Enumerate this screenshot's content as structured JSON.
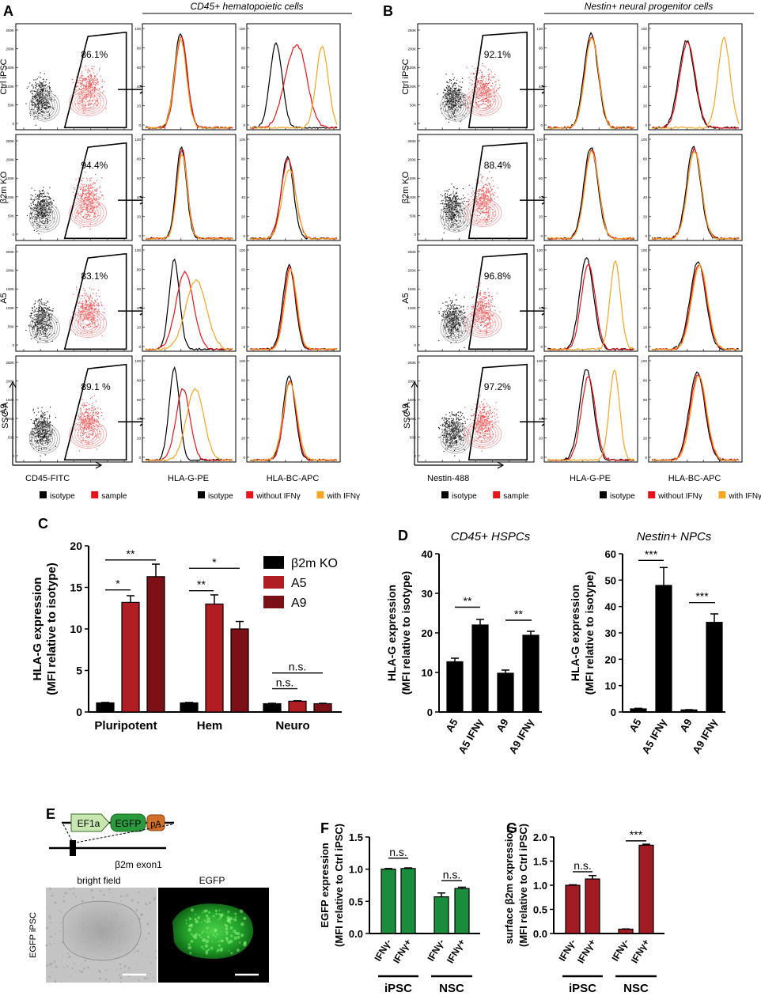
{
  "panel_letters": [
    "A",
    "B",
    "C",
    "D",
    "E",
    "F",
    "G"
  ],
  "panelA": {
    "header": "CD45+ hematopoietic cells",
    "rows": [
      {
        "label": "Ctrl iPSC",
        "gate_pct": "86.1%"
      },
      {
        "label": "β2m KO",
        "gate_pct": "94.4%"
      },
      {
        "label": "A5",
        "gate_pct": "83.1%"
      },
      {
        "label": "A9",
        "gate_pct": "89.1 %"
      }
    ],
    "x_label_scatter": "CD45-FITC",
    "x_label_hlag": "HLA-G-PE",
    "x_label_hlabc": "HLA-BC-APC",
    "y_label": "SSC-A"
  },
  "panelB": {
    "header": "Nestin+ neural progenitor cells",
    "rows": [
      {
        "label": "Ctrl iPSC",
        "gate_pct": "92.1%"
      },
      {
        "label": "β2m KO",
        "gate_pct": "88.4%"
      },
      {
        "label": "A5",
        "gate_pct": "96.8%"
      },
      {
        "label": "A9",
        "gate_pct": "97.2%"
      }
    ],
    "x_label_scatter": "Nestin-488",
    "x_label_hlag": "HLA-G-PE",
    "x_label_hlabc": "HLA-BC-APC",
    "y_label": "SSC-A"
  },
  "scatter_ticks": [
    "250K",
    "200K",
    "150K",
    "100K",
    "50K",
    "0"
  ],
  "hist_ticks": [
    "100",
    "80",
    "60",
    "40",
    "20",
    "0"
  ],
  "legend_scatter": [
    {
      "label": "isotype",
      "color": "#000000"
    },
    {
      "label": "sample",
      "color": "#e8141c"
    }
  ],
  "legend_hist": [
    {
      "label": "isotype",
      "color": "#000000"
    },
    {
      "label": "without IFNγ",
      "color": "#e8141c"
    },
    {
      "label": "with IFNγ",
      "color": "#f5a623"
    }
  ],
  "colors": {
    "black": "#000000",
    "red": "#e8141c",
    "orange": "#f5a623",
    "darkred": "#7b1116",
    "midred": "#b01e24",
    "green": "#1a8c3c",
    "brightred": "#a11c22"
  },
  "chart_data": [
    {
      "id": "C",
      "type": "bar",
      "ylabel": "HLA-G expression",
      "ylabel2": "(MFI relative to isotype)",
      "ylim": [
        0,
        20
      ],
      "yticks": [
        "0",
        "5",
        "10",
        "15",
        "20"
      ],
      "categories": [
        "Pluripotent",
        "Hem",
        "Neuro"
      ],
      "series": [
        {
          "name": "β2m KO",
          "values": [
            1.1,
            1.1,
            1.0
          ],
          "errors": [
            0.05,
            0.05,
            0.05
          ]
        },
        {
          "name": "A5",
          "values": [
            13.2,
            13.0,
            1.3
          ],
          "errors": [
            0.8,
            1.1,
            0.05
          ]
        },
        {
          "name": "A9",
          "values": [
            16.3,
            10.0,
            1.0
          ],
          "errors": [
            1.5,
            0.9,
            0.05
          ]
        }
      ],
      "annotations": [
        "*",
        "**",
        "**",
        "*",
        "n.s.",
        "n.s."
      ]
    },
    {
      "id": "D1",
      "type": "bar",
      "title": "CD45+ HSPCs",
      "ylabel": "HLA-G expression",
      "ylabel2": "(MFI relative to isotype)",
      "ylim": [
        0,
        40
      ],
      "yticks": [
        "0",
        "10",
        "20",
        "30",
        "40"
      ],
      "categories": [
        "A5",
        "A5 IFNγ",
        "A9",
        "A9 IFNγ"
      ],
      "values": [
        12.7,
        22.0,
        9.8,
        19.4
      ],
      "errors": [
        0.9,
        1.4,
        0.8,
        1.0
      ],
      "annotations": [
        "**",
        "**"
      ]
    },
    {
      "id": "D2",
      "type": "bar",
      "title": "Nestin+ NPCs",
      "ylabel": "HLA-G expression",
      "ylabel2": "(MFI relative to isotype)",
      "ylim": [
        0,
        60
      ],
      "yticks": [
        "0",
        "10",
        "20",
        "30",
        "40",
        "50",
        "60"
      ],
      "categories": [
        "A5",
        "A5 IFNγ",
        "A9",
        "A9 IFNγ"
      ],
      "values": [
        1.2,
        48.0,
        0.8,
        34.0
      ],
      "errors": [
        0.2,
        6.8,
        0.1,
        3.2
      ],
      "annotations": [
        "***",
        "***"
      ]
    },
    {
      "id": "F",
      "type": "bar",
      "ylabel": "EGFP expression",
      "ylabel2": "(MFI relative to Ctrl iPSC)",
      "ylim": [
        0,
        1.5
      ],
      "yticks": [
        "0.0",
        "0.5",
        "1.0",
        "1.5"
      ],
      "categories": [
        "IFNγ-",
        "IFNγ+",
        "IFNγ-",
        "IFNγ+"
      ],
      "groups": [
        "iPSC",
        "NSC"
      ],
      "values": [
        1.0,
        1.01,
        0.57,
        0.7
      ],
      "errors": [
        0.01,
        0.01,
        0.06,
        0.02
      ],
      "annotations": [
        "n.s.",
        "n.s."
      ]
    },
    {
      "id": "G",
      "type": "bar",
      "ylabel": "surface β2m expression",
      "ylabel2": "(MFI relative to Ctrl iPSC)",
      "ylim": [
        0,
        2.0
      ],
      "yticks": [
        "0.0",
        "0.5",
        "1.0",
        "1.5",
        "2.0"
      ],
      "categories": [
        "IFNγ-",
        "IFNγ+",
        "IFNγ-",
        "IFNγ+"
      ],
      "groups": [
        "iPSC",
        "NSC"
      ],
      "values": [
        1.0,
        1.13,
        0.09,
        1.83
      ],
      "errors": [
        0.01,
        0.07,
        0.005,
        0.02
      ],
      "annotations": [
        "n.s.",
        "***"
      ]
    }
  ],
  "panelE": {
    "construct": [
      "EF1a",
      "EGFP",
      "pA"
    ],
    "exon_label": "β2m exon1",
    "image_labels": [
      "bright field",
      "EGFP"
    ],
    "side_label": "EGFP iPSC"
  }
}
